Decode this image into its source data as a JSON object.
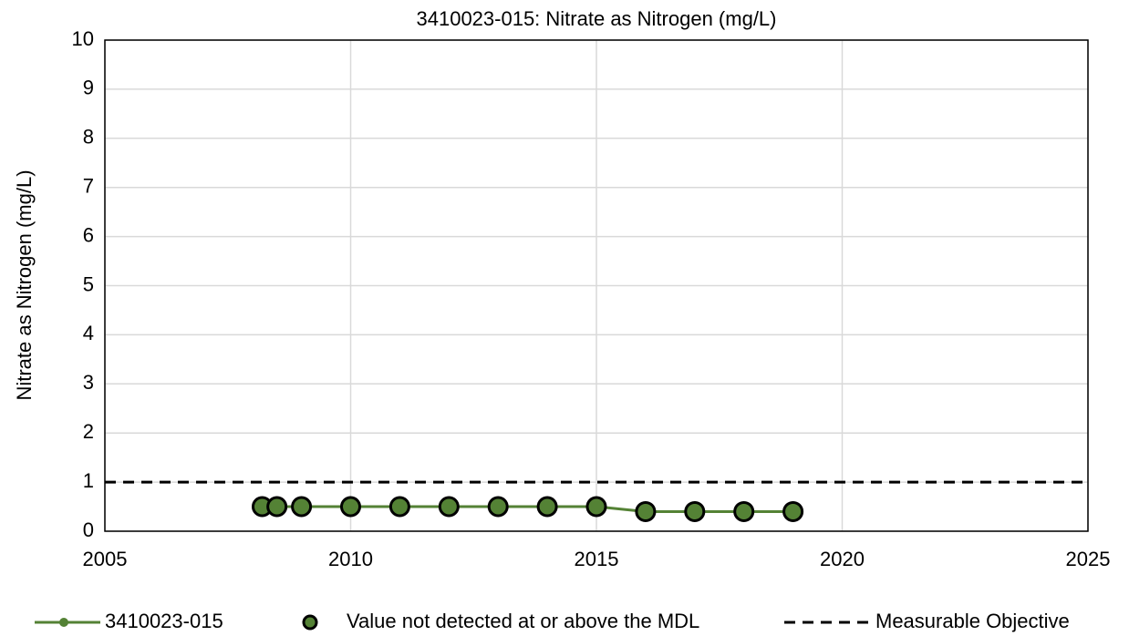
{
  "chart_data": {
    "type": "line",
    "title": "3410023-015: Nitrate as Nitrogen (mg/L)",
    "y_label": "Nitrate as Nitrogen (mg/L)",
    "xlim": [
      2005,
      2025
    ],
    "xticks": [
      2005,
      2010,
      2015,
      2020,
      2025
    ],
    "ylim": [
      0,
      10
    ],
    "yticks": [
      0,
      1,
      2,
      3,
      4,
      5,
      6,
      7,
      8,
      9,
      10
    ],
    "grid": true,
    "legend": "bottom",
    "series": [
      {
        "name": "3410023-015",
        "style": "line",
        "color": "#548235",
        "x": [
          2008.2,
          2008.5,
          2009.0,
          2010.0,
          2011.0,
          2012.0,
          2013.0,
          2014.0,
          2015.0,
          2016.0,
          2017.0,
          2018.0,
          2019.0
        ],
        "values": [
          0.5,
          0.5,
          0.5,
          0.5,
          0.5,
          0.5,
          0.5,
          0.5,
          0.5,
          0.4,
          0.4,
          0.4,
          0.4
        ]
      },
      {
        "name": "Value not detected at or above the MDL",
        "style": "markers",
        "color": "#548235",
        "edgecolor": "#000000",
        "x": [
          2008.2,
          2008.5,
          2009.0,
          2010.0,
          2011.0,
          2012.0,
          2013.0,
          2014.0,
          2015.0,
          2016.0,
          2017.0,
          2018.0,
          2019.0
        ],
        "values": [
          0.5,
          0.5,
          0.5,
          0.5,
          0.5,
          0.5,
          0.5,
          0.5,
          0.5,
          0.4,
          0.4,
          0.4,
          0.4
        ]
      },
      {
        "name": "Measurable Objective",
        "style": "dashed",
        "color": "#000000",
        "x": [
          2005,
          2025
        ],
        "values": [
          1,
          1
        ]
      }
    ]
  }
}
